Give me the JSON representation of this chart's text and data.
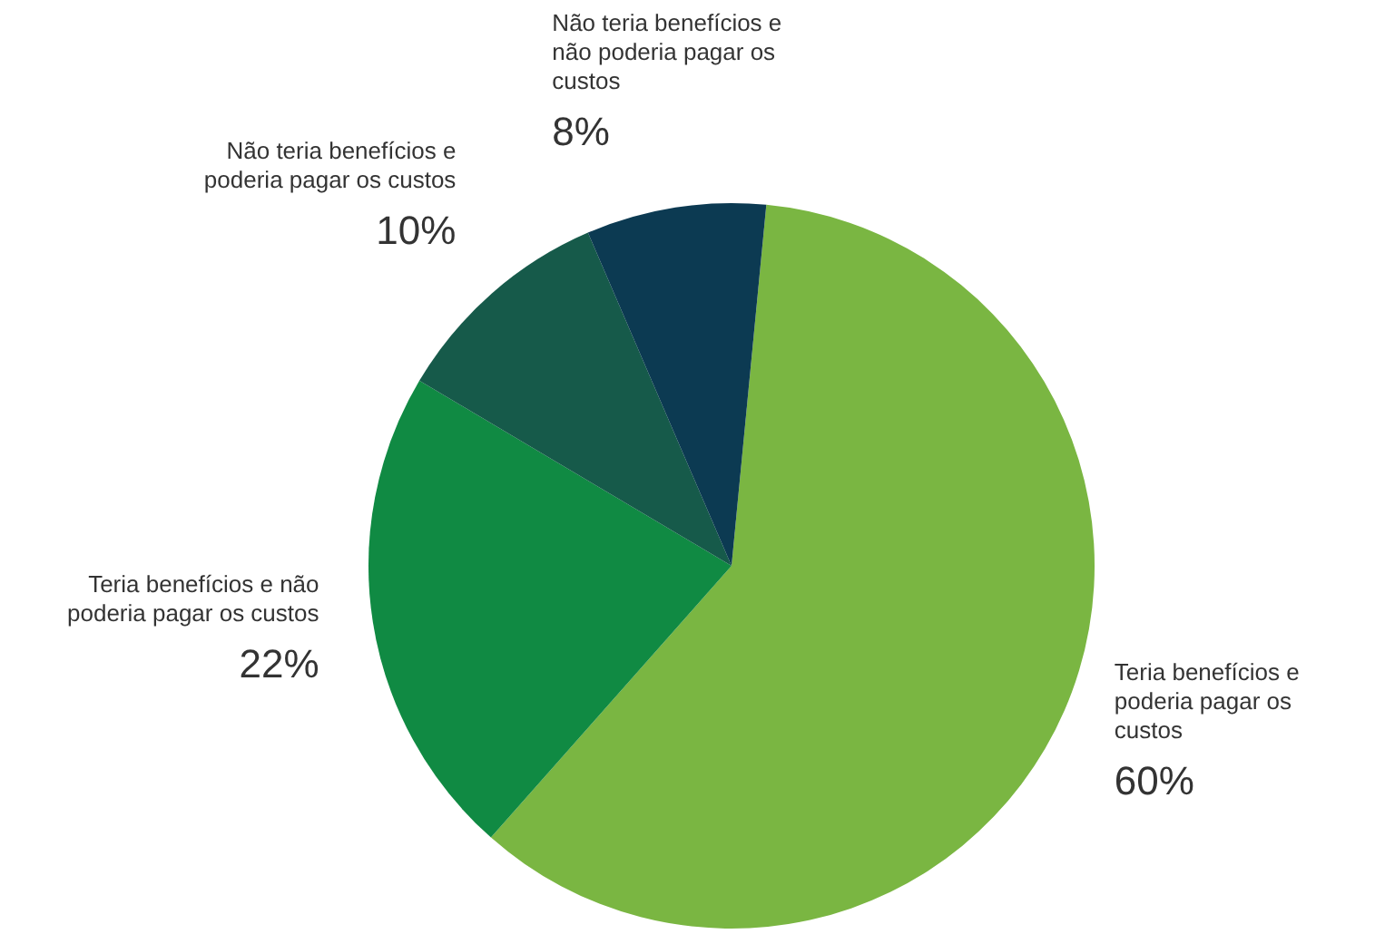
{
  "chart_data": {
    "type": "pie",
    "categories": [
      "Teria benefícios e poderia pagar os custos",
      "Teria benefícios e não poderia pagar os custos",
      "Não teria benefícios e poderia pagar os custos",
      "Não teria benefícios e não poderia pagar os custos"
    ],
    "values": [
      60,
      22,
      10,
      8
    ],
    "value_labels": [
      "60%",
      "22%",
      "10%",
      "8%"
    ],
    "colors": [
      "#7ab642",
      "#108a43",
      "#165a4a",
      "#0c3a52"
    ],
    "legend": false
  }
}
